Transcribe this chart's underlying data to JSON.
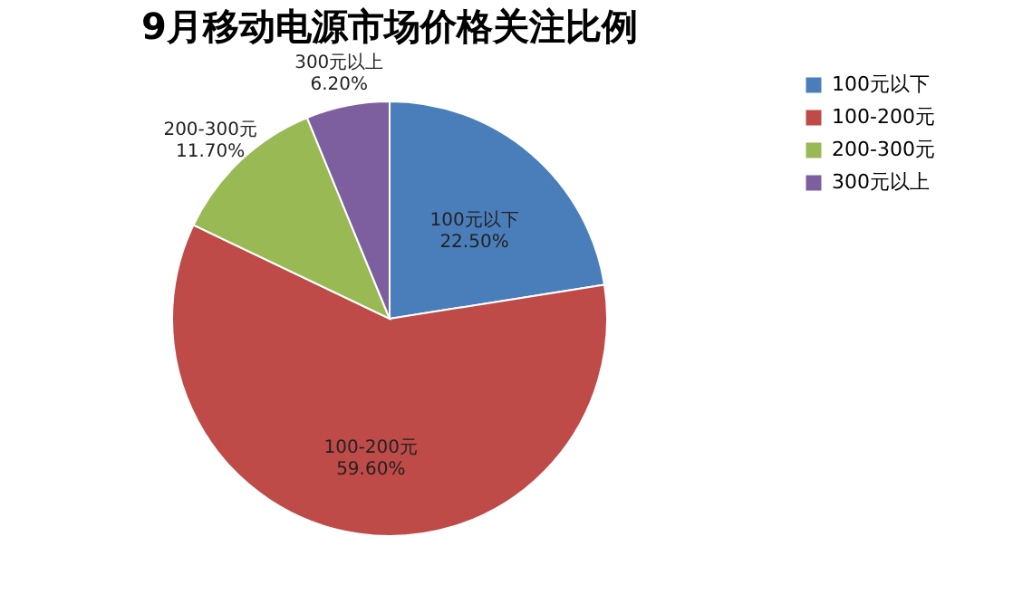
{
  "chart_data": {
    "type": "pie",
    "title": "9月移动电源市场价格关注比例",
    "categories": [
      "100元以下",
      "100-200元",
      "200-300元",
      "300元以上"
    ],
    "values": [
      22.5,
      59.6,
      11.7,
      6.2
    ],
    "value_labels": [
      "22.50%",
      "59.60%",
      "11.70%",
      "6.20%"
    ],
    "colors": [
      "#4a7ebb",
      "#be4b48",
      "#98b954",
      "#7d5fa0"
    ],
    "legend": "right"
  }
}
